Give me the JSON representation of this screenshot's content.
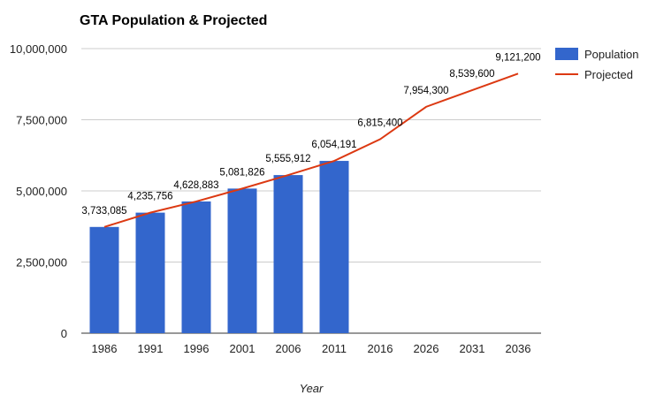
{
  "chart_data": {
    "type": "bar",
    "title": "GTA Population & Projected",
    "xlabel": "Year",
    "ylabel": "",
    "ylim": [
      0,
      10000000
    ],
    "yticks": [
      0,
      2500000,
      5000000,
      7500000,
      10000000
    ],
    "ytick_labels": [
      "0",
      "2,500,000",
      "5,000,000",
      "7,500,000",
      "10,000,000"
    ],
    "grid": true,
    "legend_position": "right",
    "categories": [
      "1986",
      "1991",
      "1996",
      "2001",
      "2006",
      "2011",
      "2016",
      "2026",
      "2031",
      "2036"
    ],
    "series": [
      {
        "name": "Population",
        "type": "bar",
        "color": "#3366cc",
        "values": [
          3733085,
          4235756,
          4628883,
          5081826,
          5555912,
          6054191,
          null,
          null,
          null,
          null
        ]
      },
      {
        "name": "Projected",
        "type": "line",
        "color": "#dc3912",
        "values": [
          3733085,
          4235756,
          4628883,
          5081826,
          5555912,
          6054191,
          6815400,
          7954300,
          8539600,
          9121200
        ]
      }
    ],
    "data_labels": [
      "3,733,085",
      "4,235,756",
      "4,628,883",
      "5,081,826",
      "5,555,912",
      "6,054,191",
      "6,815,400",
      "7,954,300",
      "8,539,600",
      "9,121,200"
    ]
  }
}
